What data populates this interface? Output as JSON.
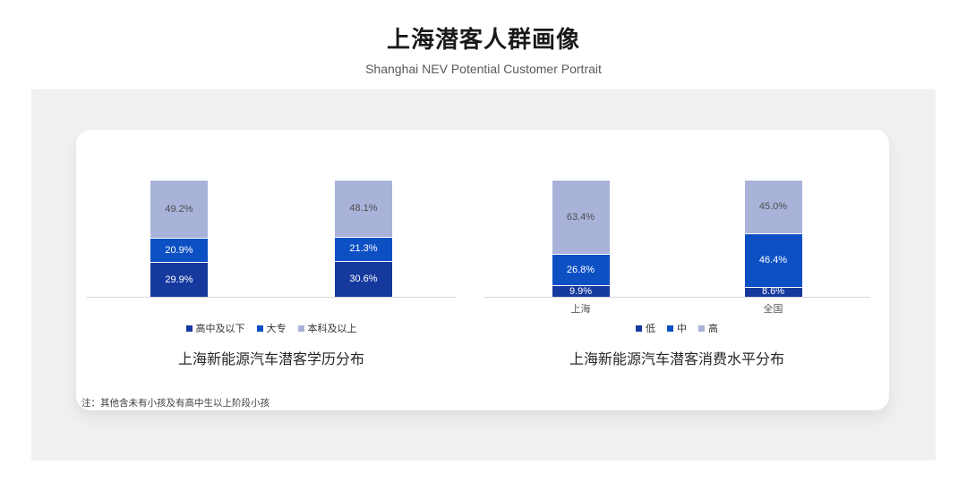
{
  "header": {
    "title": "上海潜客人群画像",
    "subtitle": "Shanghai NEV Potential Customer Portrait"
  },
  "footnote": "注：其他含未有小孩及有高中生以上阶段小孩",
  "colors": {
    "series_low": "#16399e",
    "series_mid": "#0d50c4",
    "series_high": "#a9b3da",
    "axis_line": "#d8d8d8",
    "panel_bg": "#f0f0f1",
    "card_bg": "#ffffff"
  },
  "chart_data": [
    {
      "type": "bar",
      "stacked": true,
      "percent": true,
      "title": "上海新能源汽车潜客学历分布",
      "categories": [
        "",
        ""
      ],
      "series": [
        {
          "name": "高中及以下",
          "color": "#16399e",
          "label_color": "#ffffff",
          "values": [
            29.9,
            30.6
          ]
        },
        {
          "name": "大专",
          "color": "#0d50c4",
          "label_color": "#ffffff",
          "values": [
            20.9,
            21.3
          ]
        },
        {
          "name": "本科及以上",
          "color": "#a9b3da",
          "label_color": "#4d4d4d",
          "values": [
            49.2,
            48.1
          ]
        }
      ],
      "ylim": [
        0,
        100
      ],
      "grid": false,
      "legend_position": "bottom",
      "value_labels": true
    },
    {
      "type": "bar",
      "stacked": true,
      "percent": true,
      "title": "上海新能源汽车潜客消费水平分布",
      "categories": [
        "上海",
        "全国"
      ],
      "series": [
        {
          "name": "低",
          "color": "#16399e",
          "label_color": "#ffffff",
          "values": [
            9.9,
            8.6
          ]
        },
        {
          "name": "中",
          "color": "#0d50c4",
          "label_color": "#ffffff",
          "values": [
            26.8,
            46.4
          ]
        },
        {
          "name": "高",
          "color": "#a9b3da",
          "label_color": "#4d4d4d",
          "values": [
            63.4,
            45.0
          ]
        }
      ],
      "ylim": [
        0,
        100
      ],
      "grid": false,
      "legend_position": "bottom",
      "value_labels": true
    }
  ]
}
